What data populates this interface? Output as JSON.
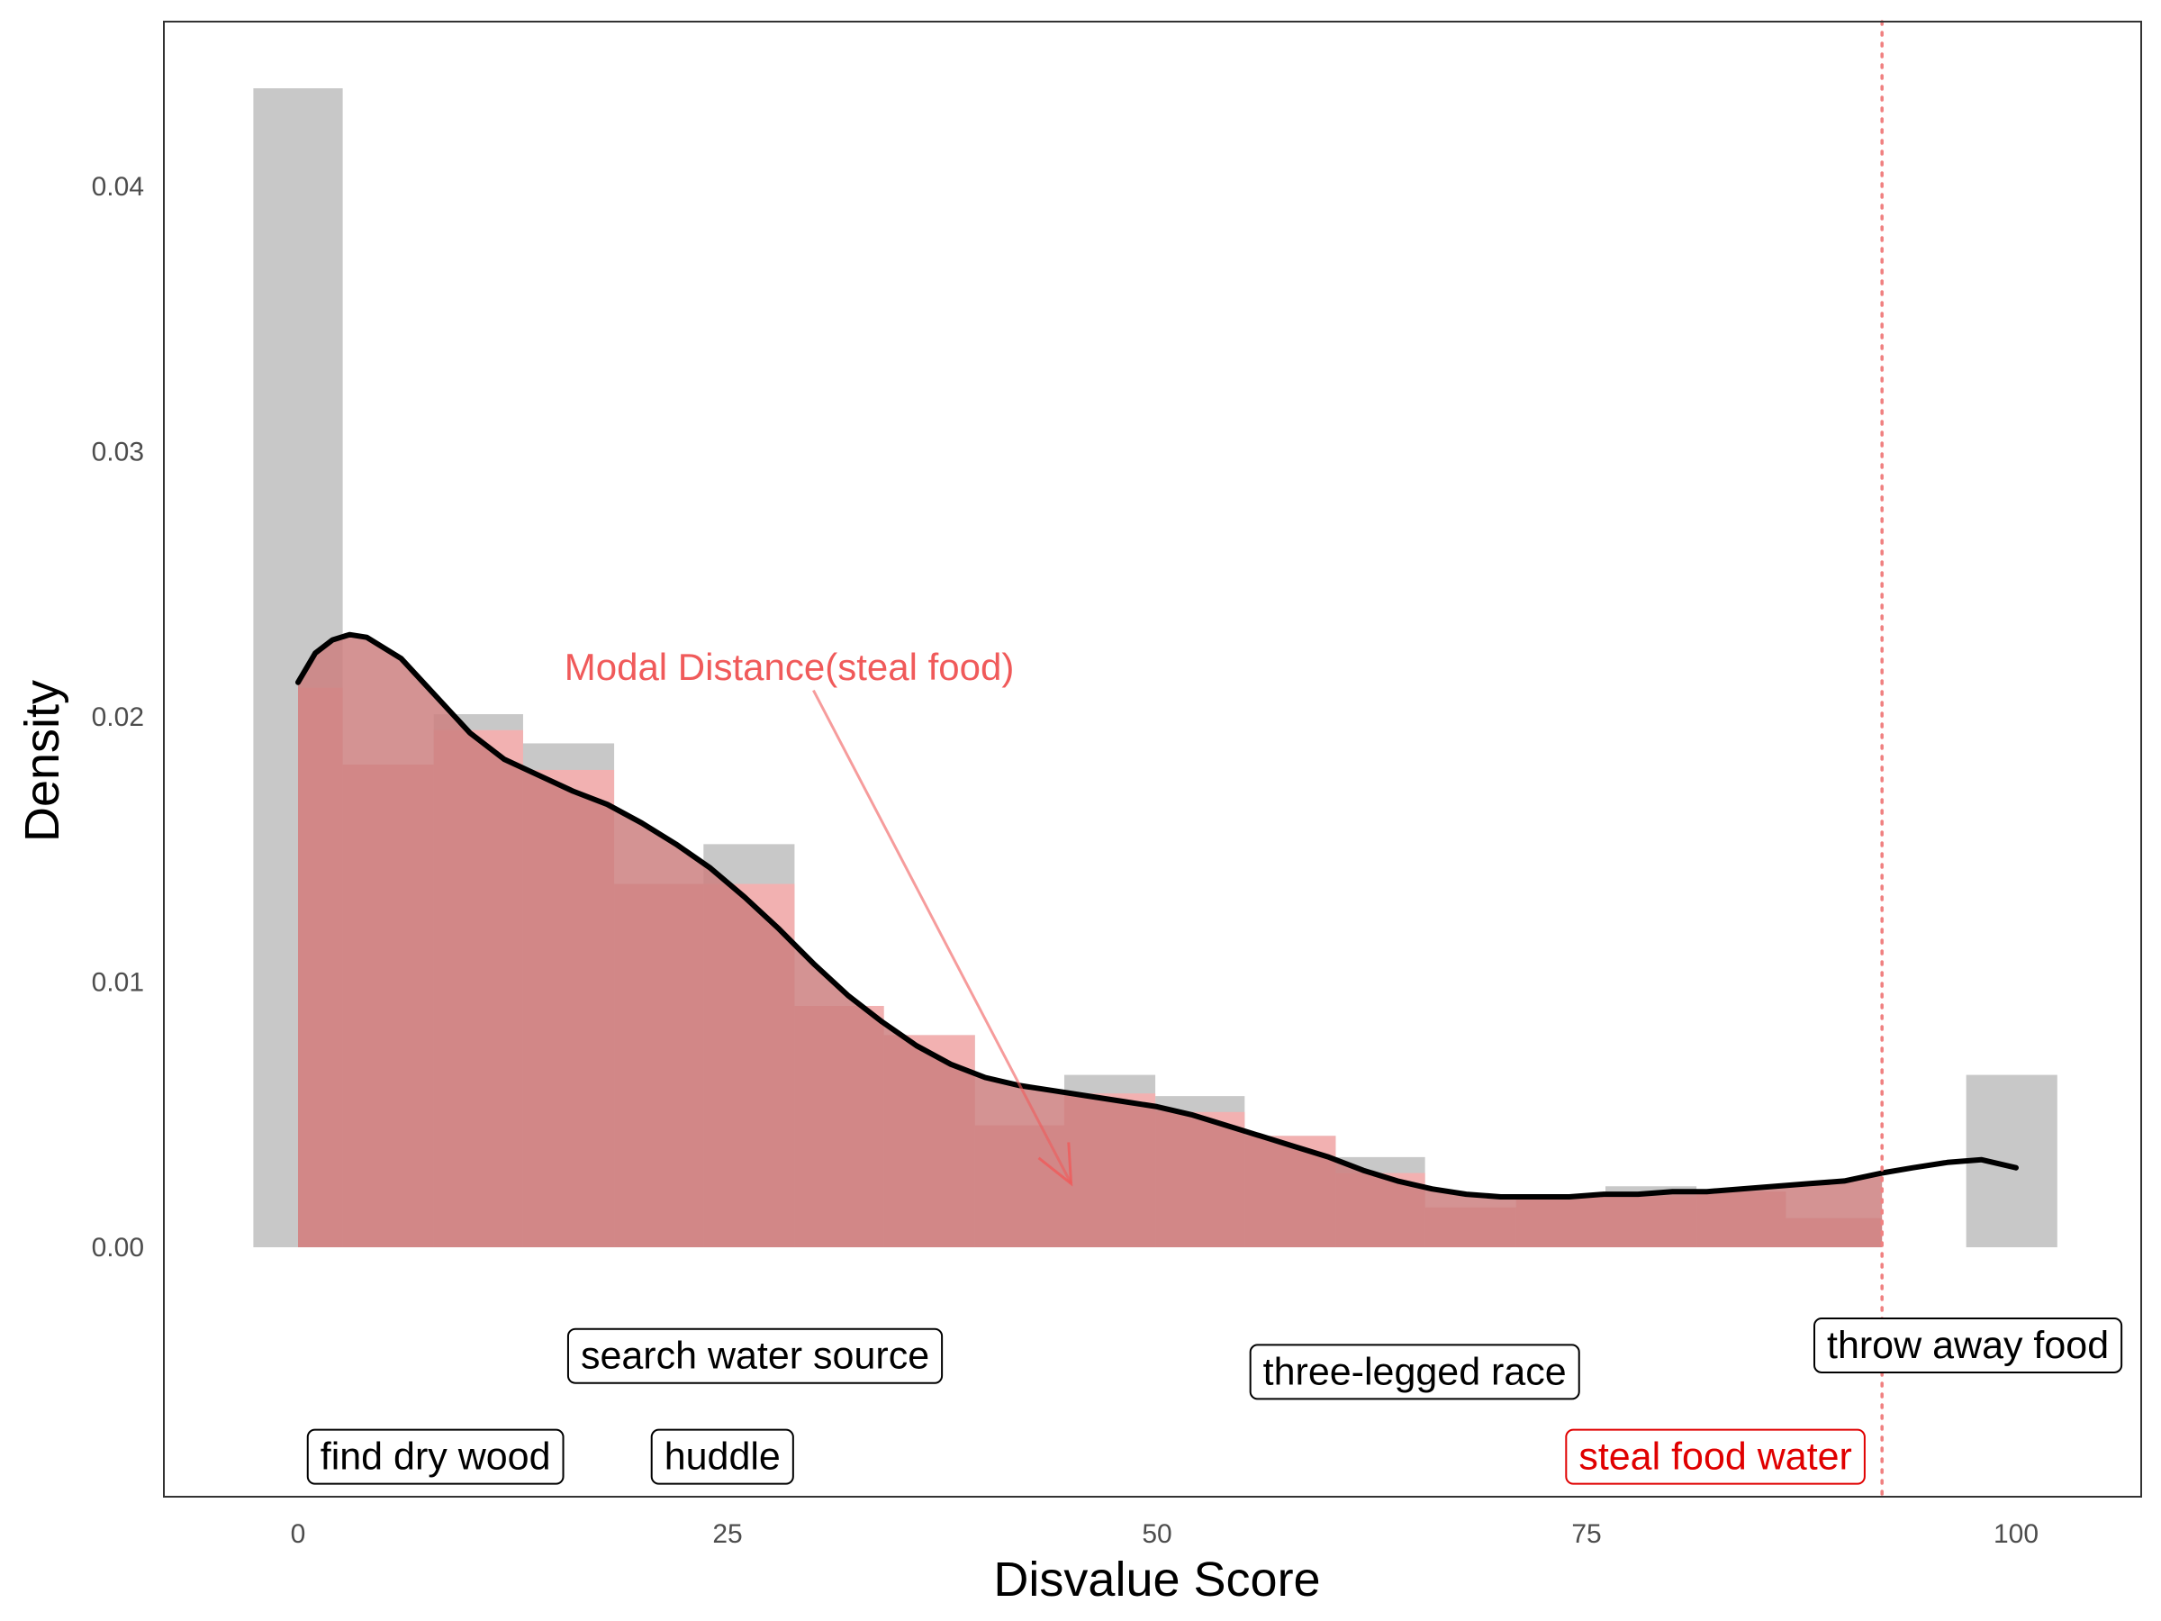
{
  "chart_data": {
    "type": "bar",
    "title": "",
    "xlabel": "Disvalue Score",
    "ylabel": "Density",
    "xlim": [
      -7.8,
      106.7
    ],
    "ylim": [
      -0.0094,
      0.0462
    ],
    "x_ticks": [
      {
        "value": 0,
        "label": "0"
      },
      {
        "value": 25,
        "label": "25"
      },
      {
        "value": 50,
        "label": "50"
      },
      {
        "value": 75,
        "label": "75"
      },
      {
        "value": 100,
        "label": "100"
      }
    ],
    "y_ticks": [
      {
        "value": 0,
        "label": "0.00"
      },
      {
        "value": 0.01,
        "label": "0.01"
      },
      {
        "value": 0.02,
        "label": "0.02"
      },
      {
        "value": 0.03,
        "label": "0.03"
      },
      {
        "value": 0.04,
        "label": "0.04"
      }
    ],
    "grid": false,
    "colors": {
      "all_bars": "#c8c8c8",
      "subset_bars": "#f2b1b1",
      "density_fill": "#cd8080",
      "density_line": "#000000",
      "reference_line": "#f08080",
      "annotation": "#f05a5a",
      "highlight_label": "#e00000"
    },
    "series": [
      {
        "kind": "histogram",
        "bins": [
          {
            "x0": -2.6,
            "x1": 2.6,
            "y": 0.0437
          },
          {
            "x0": 2.6,
            "x1": 7.9,
            "y": 0.0182
          },
          {
            "x0": 7.9,
            "x1": 13.1,
            "y": 0.0201
          },
          {
            "x0": 13.1,
            "x1": 18.4,
            "y": 0.019
          },
          {
            "x0": 18.4,
            "x1": 23.6,
            "y": 0.0137
          },
          {
            "x0": 23.6,
            "x1": 28.9,
            "y": 0.0152
          },
          {
            "x0": 28.9,
            "x1": 34.1,
            "y": 0.0091
          },
          {
            "x0": 34.1,
            "x1": 39.4,
            "y": 0.008
          },
          {
            "x0": 39.4,
            "x1": 44.6,
            "y": 0.0046
          },
          {
            "x0": 44.6,
            "x1": 49.9,
            "y": 0.0065
          },
          {
            "x0": 49.9,
            "x1": 55.1,
            "y": 0.0057
          },
          {
            "x0": 55.1,
            "x1": 60.4,
            "y": 0.0042
          },
          {
            "x0": 60.4,
            "x1": 65.6,
            "y": 0.0034
          },
          {
            "x0": 65.6,
            "x1": 70.9,
            "y": 0.0015
          },
          {
            "x0": 70.9,
            "x1": 76.1,
            "y": 0.0019
          },
          {
            "x0": 76.1,
            "x1": 81.4,
            "y": 0.0023
          },
          {
            "x0": 81.4,
            "x1": 86.6,
            "y": 0.0021
          },
          {
            "x0": 86.6,
            "x1": 91.9,
            "y": 0.0011
          },
          {
            "x0": 91.9,
            "x1": 97.1,
            "y": 0.0
          },
          {
            "x0": 97.1,
            "x1": 102.4,
            "y": 0.0065
          }
        ]
      },
      {
        "kind": "histogram-subset",
        "bins": [
          {
            "x0": 0,
            "x1": 2.6,
            "y": 0.0211
          },
          {
            "x0": 2.6,
            "x1": 7.9,
            "y": 0.0182
          },
          {
            "x0": 7.9,
            "x1": 13.1,
            "y": 0.0195
          },
          {
            "x0": 13.1,
            "x1": 18.4,
            "y": 0.018
          },
          {
            "x0": 18.4,
            "x1": 23.6,
            "y": 0.0137
          },
          {
            "x0": 23.6,
            "x1": 28.9,
            "y": 0.0137
          },
          {
            "x0": 28.9,
            "x1": 34.1,
            "y": 0.0091
          },
          {
            "x0": 34.1,
            "x1": 39.4,
            "y": 0.008
          },
          {
            "x0": 39.4,
            "x1": 44.6,
            "y": 0.0046
          },
          {
            "x0": 44.6,
            "x1": 49.9,
            "y": 0.0058
          },
          {
            "x0": 49.9,
            "x1": 55.1,
            "y": 0.0051
          },
          {
            "x0": 55.1,
            "x1": 60.4,
            "y": 0.0042
          },
          {
            "x0": 60.4,
            "x1": 65.6,
            "y": 0.0028
          },
          {
            "x0": 65.6,
            "x1": 70.9,
            "y": 0.0015
          },
          {
            "x0": 70.9,
            "x1": 76.1,
            "y": 0.0019
          },
          {
            "x0": 76.1,
            "x1": 81.4,
            "y": 0.0019
          },
          {
            "x0": 81.4,
            "x1": 86.6,
            "y": 0.0021
          },
          {
            "x0": 86.6,
            "x1": 92.2,
            "y": 0.0011
          }
        ]
      },
      {
        "kind": "density",
        "x": [
          0,
          1,
          2,
          3,
          4,
          6,
          8,
          10,
          12,
          14,
          16,
          18,
          20,
          22,
          24,
          26,
          28,
          30,
          32,
          34,
          36,
          38,
          40,
          42,
          44,
          46,
          48,
          50,
          52,
          54,
          56,
          58,
          60,
          62,
          64,
          66,
          68,
          70,
          72,
          74,
          76,
          78,
          80,
          82,
          84,
          86,
          88,
          90,
          92.2,
          94,
          96,
          98,
          100
        ],
        "y": [
          0.0213,
          0.0224,
          0.0229,
          0.0231,
          0.023,
          0.0222,
          0.0208,
          0.0194,
          0.0184,
          0.0178,
          0.0172,
          0.0167,
          0.016,
          0.0152,
          0.0143,
          0.0132,
          0.012,
          0.0107,
          0.0095,
          0.0085,
          0.0076,
          0.0069,
          0.0064,
          0.0061,
          0.0059,
          0.0057,
          0.0055,
          0.0053,
          0.005,
          0.0046,
          0.0042,
          0.0038,
          0.0034,
          0.0029,
          0.0025,
          0.0022,
          0.002,
          0.0019,
          0.0019,
          0.0019,
          0.002,
          0.002,
          0.0021,
          0.0021,
          0.0022,
          0.0023,
          0.0024,
          0.0025,
          0.0028,
          0.003,
          0.0032,
          0.0033,
          0.003
        ]
      }
    ],
    "reference_line": {
      "x": 92.2,
      "style": "dotted"
    },
    "annotation": {
      "text": "Modal Distance(steal food)",
      "text_x": 15.5,
      "text_y": 0.0219,
      "from_x": 30.0,
      "from_y": 0.021,
      "to_x": 45.0,
      "to_y": 0.0024
    },
    "labels": [
      {
        "text": "search water source",
        "x": 26.6,
        "y": -0.0041,
        "highlight": false
      },
      {
        "text": "three-legged race",
        "x": 65.0,
        "y": -0.0047,
        "highlight": false
      },
      {
        "text": "throw away food",
        "x": 97.2,
        "y": -0.0037,
        "highlight": false
      },
      {
        "text": "find dry wood",
        "x": 8.0,
        "y": -0.0079,
        "highlight": false
      },
      {
        "text": "huddle",
        "x": 24.7,
        "y": -0.0079,
        "highlight": false
      },
      {
        "text": "steal food water",
        "x": 82.5,
        "y": -0.0079,
        "highlight": true
      }
    ]
  }
}
